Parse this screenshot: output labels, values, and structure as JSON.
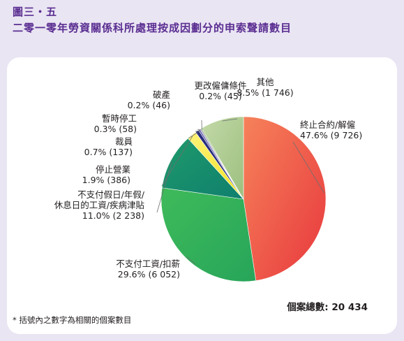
{
  "figure_label": "圖三・五",
  "title": "二零一零年勞資關係科所處理按成因劃分的申索聲請數目",
  "total_label": "個案總數: 20 434",
  "footnote": "* 括號內之數字為相關的個案數目",
  "colors": {
    "title": "#5a2d91",
    "background": "#e9e5f3",
    "panel": "#ffffff"
  },
  "chart_data": {
    "type": "pie",
    "title": "二零一零年勞資關係科所處理按成因劃分的申索聲請數目",
    "total": 20434,
    "slices": [
      {
        "label": "終止合約/解僱",
        "percent": 47.6,
        "count": 9726,
        "percent_text": "47.6% (9 726)",
        "color": "#e8383d",
        "color_light": "#f6825a"
      },
      {
        "label": "不支付工資/扣薪",
        "percent": 29.6,
        "count": 6052,
        "percent_text": "29.6% (6 052)",
        "color": "#27a55a",
        "color_light": "#3fba5a"
      },
      {
        "label": "不支付假日/年假/休息日的工資/疾病津貼",
        "label_lines": [
          "不支付假日/年假/",
          "休息日的工資/疾病津貼"
        ],
        "percent": 11.0,
        "count": 2238,
        "percent_text": "11.0% (2 238)",
        "color": "#0f7f6e",
        "color_light": "#1f9a6a"
      },
      {
        "label": "停止營業",
        "percent": 1.9,
        "count": 386,
        "percent_text": "1.9% (386)",
        "color": "#f2e31b",
        "color_light": "#fff27a"
      },
      {
        "label": "裁員",
        "percent": 0.7,
        "count": 137,
        "percent_text": "0.7% (137)",
        "color": "#2b2f7e",
        "color_light": "#2b2f7e"
      },
      {
        "label": "暫時停工",
        "percent": 0.3,
        "count": 58,
        "percent_text": "0.3% (58)",
        "color": "#5d56a6",
        "color_light": "#5d56a6"
      },
      {
        "label": "破產",
        "percent": 0.2,
        "count": 46,
        "percent_text": "0.2% (46)",
        "color": "#8f84c2",
        "color_light": "#8f84c2"
      },
      {
        "label": "更改僱傭條件",
        "percent": 0.2,
        "count": 45,
        "percent_text": "0.2% (45)",
        "color": "#6a9a47",
        "color_light": "#6a9a47"
      },
      {
        "label": "其他",
        "percent": 8.5,
        "count": 1746,
        "percent_text": "8.5% (1 746)",
        "color": "#9cc07f",
        "color_light": "#c3d9a8"
      }
    ]
  }
}
